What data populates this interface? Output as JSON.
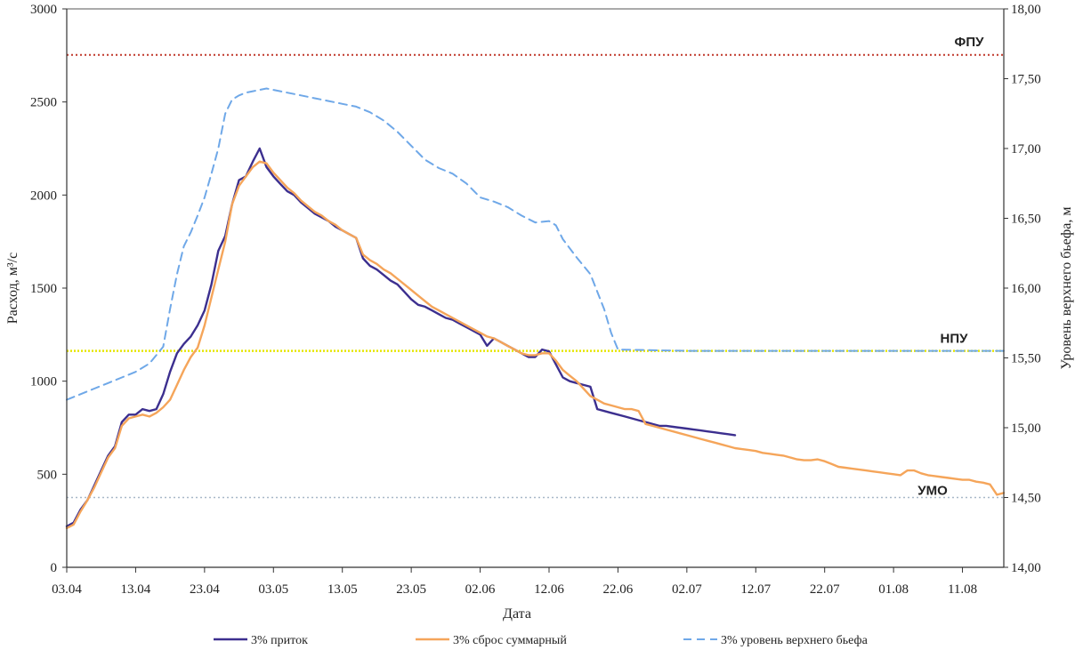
{
  "chart_data": {
    "type": "line",
    "title": "",
    "xlabel": "Дата",
    "ylabel": "Расход, м³/с",
    "y2label": "Уровень верхнего бьефа, м",
    "ylim": [
      0,
      3000
    ],
    "y2lim": [
      14.0,
      18.0
    ],
    "y_ticks": [
      "0",
      "500",
      "1000",
      "1500",
      "2000",
      "2500",
      "3000"
    ],
    "y2_ticks": [
      "14,00",
      "14,50",
      "15,00",
      "15,50",
      "16,00",
      "16,50",
      "17,00",
      "17,50",
      "18,00"
    ],
    "x_ticks": [
      "03.04",
      "13.04",
      "23.04",
      "03.05",
      "13.05",
      "23.05",
      "02.06",
      "12.06",
      "22.06",
      "02.07",
      "12.07",
      "22.07",
      "01.08",
      "11.08"
    ],
    "x_range_days": [
      0,
      136
    ],
    "legend_position": "bottom",
    "reference_lines": [
      {
        "label": "ФПУ",
        "axis": "y2",
        "value": 17.67,
        "color": "#c0392b"
      },
      {
        "label": "НПУ",
        "axis": "y2",
        "value": 15.55,
        "color": "#e6e600"
      },
      {
        "label": "УМО",
        "axis": "y2",
        "value": 14.5,
        "color": "#a8b8c8"
      }
    ],
    "series": [
      {
        "name": "3% приток",
        "axis": "y",
        "color": "#3c2f8f",
        "days": [
          0,
          1,
          2,
          3,
          4,
          5,
          6,
          7,
          8,
          9,
          10,
          11,
          12,
          13,
          14,
          15,
          16,
          17,
          18,
          19,
          20,
          21,
          22,
          23,
          24,
          25,
          26,
          27,
          28,
          29,
          30,
          31,
          32,
          33,
          34,
          35,
          36,
          37,
          38,
          39,
          40,
          41,
          42,
          43,
          44,
          45,
          46,
          47,
          48,
          49,
          50,
          51,
          52,
          53,
          54,
          55,
          56,
          57,
          58,
          59,
          60,
          61,
          62,
          63,
          64,
          65,
          66,
          67,
          68,
          69,
          70,
          71,
          72,
          73,
          74,
          75,
          76,
          77,
          78,
          79,
          80,
          81,
          82,
          83,
          84,
          85,
          86,
          87,
          88,
          89,
          90,
          91,
          92,
          93,
          94,
          95,
          96,
          97
        ],
        "values": [
          220,
          240,
          310,
          360,
          440,
          520,
          600,
          650,
          780,
          820,
          820,
          850,
          840,
          850,
          930,
          1050,
          1150,
          1200,
          1240,
          1300,
          1380,
          1520,
          1700,
          1780,
          1950,
          2080,
          2100,
          2180,
          2250,
          2150,
          2100,
          2060,
          2020,
          2000,
          1960,
          1930,
          1900,
          1880,
          1860,
          1830,
          1810,
          1790,
          1770,
          1660,
          1620,
          1600,
          1570,
          1540,
          1520,
          1480,
          1440,
          1410,
          1400,
          1380,
          1360,
          1340,
          1330,
          1310,
          1290,
          1270,
          1250,
          1190,
          1230,
          1210,
          1190,
          1170,
          1150,
          1130,
          1130,
          1170,
          1160,
          1090,
          1020,
          1000,
          990,
          980,
          970,
          850,
          840,
          830,
          820,
          810,
          800,
          790,
          780,
          770,
          760,
          760,
          755,
          750,
          745,
          740,
          735,
          730,
          725,
          720,
          715,
          710
        ]
      },
      {
        "name": "3% сброс суммарный",
        "axis": "y",
        "color": "#f5a55a",
        "days": [
          0,
          1,
          2,
          3,
          4,
          5,
          6,
          7,
          8,
          9,
          10,
          11,
          12,
          13,
          14,
          15,
          16,
          17,
          18,
          19,
          20,
          21,
          22,
          23,
          24,
          25,
          26,
          27,
          28,
          29,
          30,
          31,
          32,
          33,
          34,
          35,
          36,
          37,
          38,
          39,
          40,
          41,
          42,
          43,
          44,
          45,
          46,
          47,
          48,
          49,
          50,
          51,
          52,
          53,
          54,
          55,
          56,
          57,
          58,
          59,
          60,
          61,
          62,
          63,
          64,
          65,
          66,
          67,
          68,
          69,
          70,
          71,
          72,
          73,
          74,
          75,
          76,
          77,
          78,
          79,
          80,
          81,
          82,
          83,
          84,
          85,
          86,
          87,
          88,
          89,
          90,
          91,
          92,
          93,
          94,
          95,
          96,
          97,
          98,
          99,
          100,
          101,
          102,
          103,
          104,
          105,
          106,
          107,
          108,
          109,
          110,
          111,
          112,
          113,
          114,
          115,
          116,
          117,
          118,
          119,
          120,
          121,
          122,
          123,
          124,
          125,
          126,
          127,
          128,
          129,
          130,
          131,
          132,
          133,
          134,
          135,
          136
        ],
        "values": [
          210,
          230,
          300,
          360,
          430,
          510,
          590,
          640,
          760,
          800,
          810,
          820,
          810,
          830,
          860,
          900,
          980,
          1060,
          1130,
          1180,
          1300,
          1450,
          1600,
          1750,
          1950,
          2050,
          2100,
          2150,
          2180,
          2170,
          2120,
          2080,
          2040,
          2010,
          1970,
          1940,
          1910,
          1890,
          1860,
          1840,
          1810,
          1790,
          1770,
          1680,
          1650,
          1630,
          1600,
          1580,
          1550,
          1520,
          1490,
          1460,
          1430,
          1400,
          1380,
          1360,
          1340,
          1320,
          1300,
          1280,
          1260,
          1240,
          1230,
          1210,
          1190,
          1170,
          1150,
          1140,
          1140,
          1150,
          1150,
          1110,
          1060,
          1030,
          1000,
          960,
          920,
          900,
          880,
          870,
          860,
          850,
          850,
          840,
          770,
          760,
          750,
          740,
          730,
          720,
          710,
          700,
          690,
          680,
          670,
          660,
          650,
          640,
          635,
          630,
          625,
          615,
          610,
          605,
          600,
          590,
          580,
          575,
          575,
          580,
          570,
          555,
          540,
          535,
          530,
          525,
          520,
          515,
          510,
          505,
          500,
          495,
          520,
          520,
          505,
          495,
          490,
          485,
          480,
          475,
          470,
          470,
          460,
          455,
          445,
          390,
          400
        ]
      },
      {
        "name": "3% уровень верхнего бьефа",
        "axis": "y2",
        "color": "#6fa8e8",
        "days": [
          0,
          2,
          4,
          6,
          8,
          10,
          12,
          13,
          14,
          15,
          16,
          17,
          18,
          19,
          20,
          21,
          22,
          23,
          24,
          25,
          26,
          27,
          28,
          29,
          30,
          32,
          34,
          36,
          38,
          40,
          42,
          44,
          46,
          48,
          50,
          52,
          54,
          56,
          58,
          60,
          62,
          64,
          66,
          68,
          70,
          71,
          72,
          74,
          76,
          78,
          79,
          80,
          90,
          100,
          110,
          120,
          130,
          136
        ],
        "values": [
          15.2,
          15.24,
          15.28,
          15.32,
          15.36,
          15.4,
          15.46,
          15.52,
          15.58,
          15.85,
          16.1,
          16.3,
          16.4,
          16.52,
          16.65,
          16.82,
          17.0,
          17.25,
          17.35,
          17.38,
          17.4,
          17.41,
          17.42,
          17.43,
          17.42,
          17.4,
          17.38,
          17.36,
          17.34,
          17.32,
          17.3,
          17.26,
          17.2,
          17.12,
          17.02,
          16.92,
          16.86,
          16.82,
          16.75,
          16.65,
          16.62,
          16.58,
          16.52,
          16.47,
          16.48,
          16.45,
          16.35,
          16.22,
          16.1,
          15.85,
          15.68,
          15.56,
          15.55,
          15.55,
          15.55,
          15.55,
          15.55,
          15.55
        ]
      }
    ]
  }
}
